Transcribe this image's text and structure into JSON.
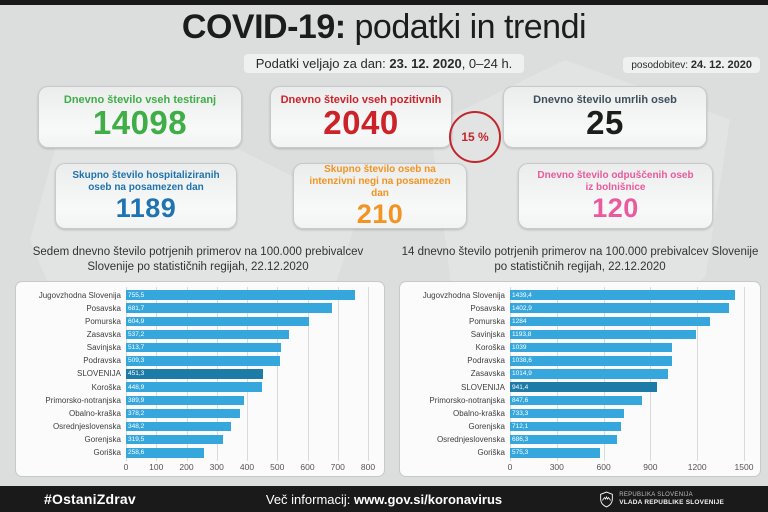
{
  "header": {
    "title_bold": "COVID-19:",
    "title_rest": " podatki in trendi",
    "date_prefix": "Podatki veljajo za dan: ",
    "date_value": "23. 12. 2020",
    "date_suffix": ", 0–24 h.",
    "update_label": "posodobitev: ",
    "update_value": "24. 12. 2020"
  },
  "cards": [
    {
      "label": "Dnevno število vseh testiranj",
      "value": "14098",
      "label_color": "#3fae47",
      "value_color": "#3fae47"
    },
    {
      "label": "Dnevno število vseh pozitivnih",
      "value": "2040",
      "label_color": "#cc2229",
      "value_color": "#cc2229",
      "badge": "15 %"
    },
    {
      "label": "Dnevno število umrlih oseb",
      "value": "25",
      "label_color": "#3d4f5d",
      "value_color": "#1d1d1b"
    },
    {
      "label": "Skupno število hospitaliziranih oseb na posamezen dan",
      "value": "1189",
      "label_color": "#1e73b0",
      "value_color": "#1e73b0"
    },
    {
      "label": "Skupno število oseb na intenzivni negi na posamezen dan",
      "value": "210",
      "label_color": "#f29422",
      "value_color": "#f29422"
    },
    {
      "label": "Dnevno število odpuščenih oseb iz bolnišnice",
      "value": "120",
      "label_color": "#ea5a9c",
      "value_color": "#ea5a9c"
    }
  ],
  "chart_data": [
    {
      "type": "bar",
      "orientation": "horizontal",
      "title": "Sedem dnevno število potrjenih primerov na 100.000 prebivalcev Slovenije po statističnih regijah, 22.12.2020",
      "xlim": [
        0,
        800
      ],
      "ticks": [
        0,
        100,
        200,
        300,
        400,
        500,
        600,
        700,
        800
      ],
      "grid": true,
      "bar_color": "#35a7dd",
      "highlight_color": "#1d7ba8",
      "highlight_index": 6,
      "categories": [
        "Jugovzhodna Slovenija",
        "Posavska",
        "Pomurska",
        "Zasavska",
        "Savinjska",
        "Podravska",
        "SLOVENIJA",
        "Koroška",
        "Primorsko-notranjska",
        "Obalno-kraška",
        "Osrednjeslovenska",
        "Gorenjska",
        "Goriška"
      ],
      "values": [
        755.5,
        681.7,
        604.9,
        537.2,
        513.7,
        509.3,
        451.3,
        448.9,
        389.9,
        378.2,
        348.2,
        319.5,
        258.6
      ],
      "value_labels": [
        "755,5",
        "681,7",
        "604,9",
        "537,2",
        "513,7",
        "509,3",
        "451,3",
        "448,9",
        "389,9",
        "378,2",
        "348,2",
        "319,5",
        "258,6"
      ]
    },
    {
      "type": "bar",
      "orientation": "horizontal",
      "title": "14 dnevno število potrjenih primerov na 100.000 prebivalcev Slovenije po statističnih regijah, 22.12.2020",
      "xlim": [
        0,
        1500
      ],
      "ticks": [
        0,
        300,
        600,
        900,
        1200,
        1500
      ],
      "grid": true,
      "bar_color": "#35a7dd",
      "highlight_color": "#1d7ba8",
      "highlight_index": 7,
      "categories": [
        "Jugovzhodna Slovenija",
        "Posavska",
        "Pomurska",
        "Savinjska",
        "Koroška",
        "Podravska",
        "Zasavska",
        "SLOVENIJA",
        "Primorsko-notranjska",
        "Obalno-kraška",
        "Gorenjska",
        "Osrednjeslovenska",
        "Goriška"
      ],
      "values": [
        1439.4,
        1402.9,
        1284,
        1193.8,
        1039,
        1038.6,
        1014.9,
        941.4,
        847.6,
        733.3,
        712.1,
        686.3,
        575.3
      ],
      "value_labels": [
        "1439,4",
        "1402,9",
        "1284",
        "1193,8",
        "1039",
        "1038,6",
        "1014,9",
        "941,4",
        "847,6",
        "733,3",
        "712,1",
        "686,3",
        "575,3"
      ]
    }
  ],
  "footer": {
    "hashtag": "#OstaniZdrav",
    "info_label": "Več informacij: ",
    "info_url": "www.gov.si/koronavirus",
    "gov_line1": "REPUBLIKA SLOVENIJA",
    "gov_line2": "VLADA REPUBLIKE SLOVENIJE"
  }
}
